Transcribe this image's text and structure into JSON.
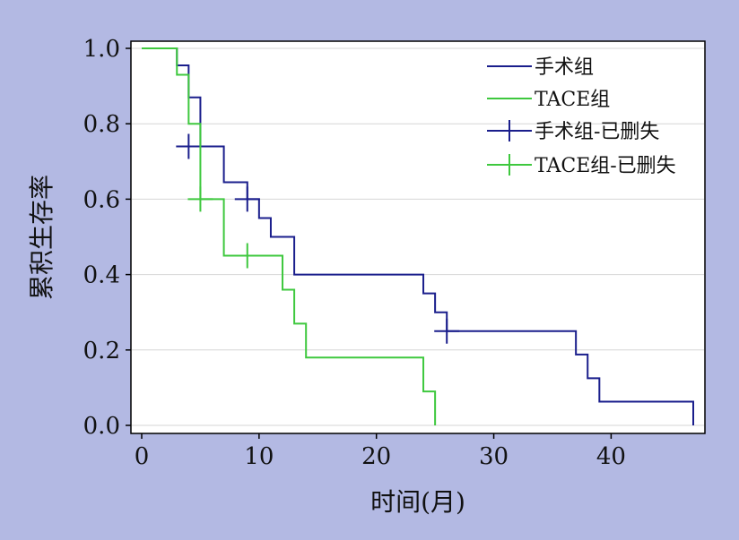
{
  "chart_data": {
    "type": "line",
    "xlabel": "时间(月)",
    "ylabel": "累积生存率",
    "xlim": [
      0,
      47
    ],
    "ylim": [
      0,
      1.0
    ],
    "xticks": [
      0,
      10,
      20,
      30,
      40
    ],
    "yticks": [
      0.0,
      0.2,
      0.4,
      0.6,
      0.8,
      1.0
    ],
    "ytick_labels": [
      "0.0",
      "0.2",
      "0.4",
      "0.6",
      "0.8",
      "1.0"
    ],
    "grid": "horizontal",
    "legend_position": "top-right",
    "legend": [
      {
        "label": "手术组",
        "kind": "line",
        "color": "#1a1e8c"
      },
      {
        "label": "TACE组",
        "kind": "line",
        "color": "#3ec83e"
      },
      {
        "label": "手术组-已删失",
        "kind": "censor",
        "color": "#1a1e8c"
      },
      {
        "label": "TACE组-已删失",
        "kind": "censor",
        "color": "#3ec83e"
      }
    ],
    "series": [
      {
        "name": "手术组",
        "color": "#1a1e8c",
        "x": [
          0,
          3,
          4,
          5,
          7,
          9,
          10,
          11,
          13,
          24,
          25,
          26,
          37,
          38,
          39,
          47
        ],
        "y": [
          1.0,
          0.955,
          0.87,
          0.74,
          0.645,
          0.6,
          0.55,
          0.5,
          0.4,
          0.35,
          0.3,
          0.25,
          0.188,
          0.125,
          0.063,
          0.0
        ],
        "censored": [
          [
            4,
            0.74
          ],
          [
            9,
            0.6
          ],
          [
            26,
            0.25
          ]
        ]
      },
      {
        "name": "TACE组",
        "color": "#3ec83e",
        "x": [
          0,
          3,
          4,
          5,
          7,
          12,
          13,
          14,
          24,
          25
        ],
        "y": [
          1.0,
          0.93,
          0.8,
          0.6,
          0.45,
          0.36,
          0.27,
          0.18,
          0.09,
          0.0
        ],
        "censored": [
          [
            5,
            0.6
          ],
          [
            9,
            0.45
          ]
        ]
      }
    ]
  }
}
